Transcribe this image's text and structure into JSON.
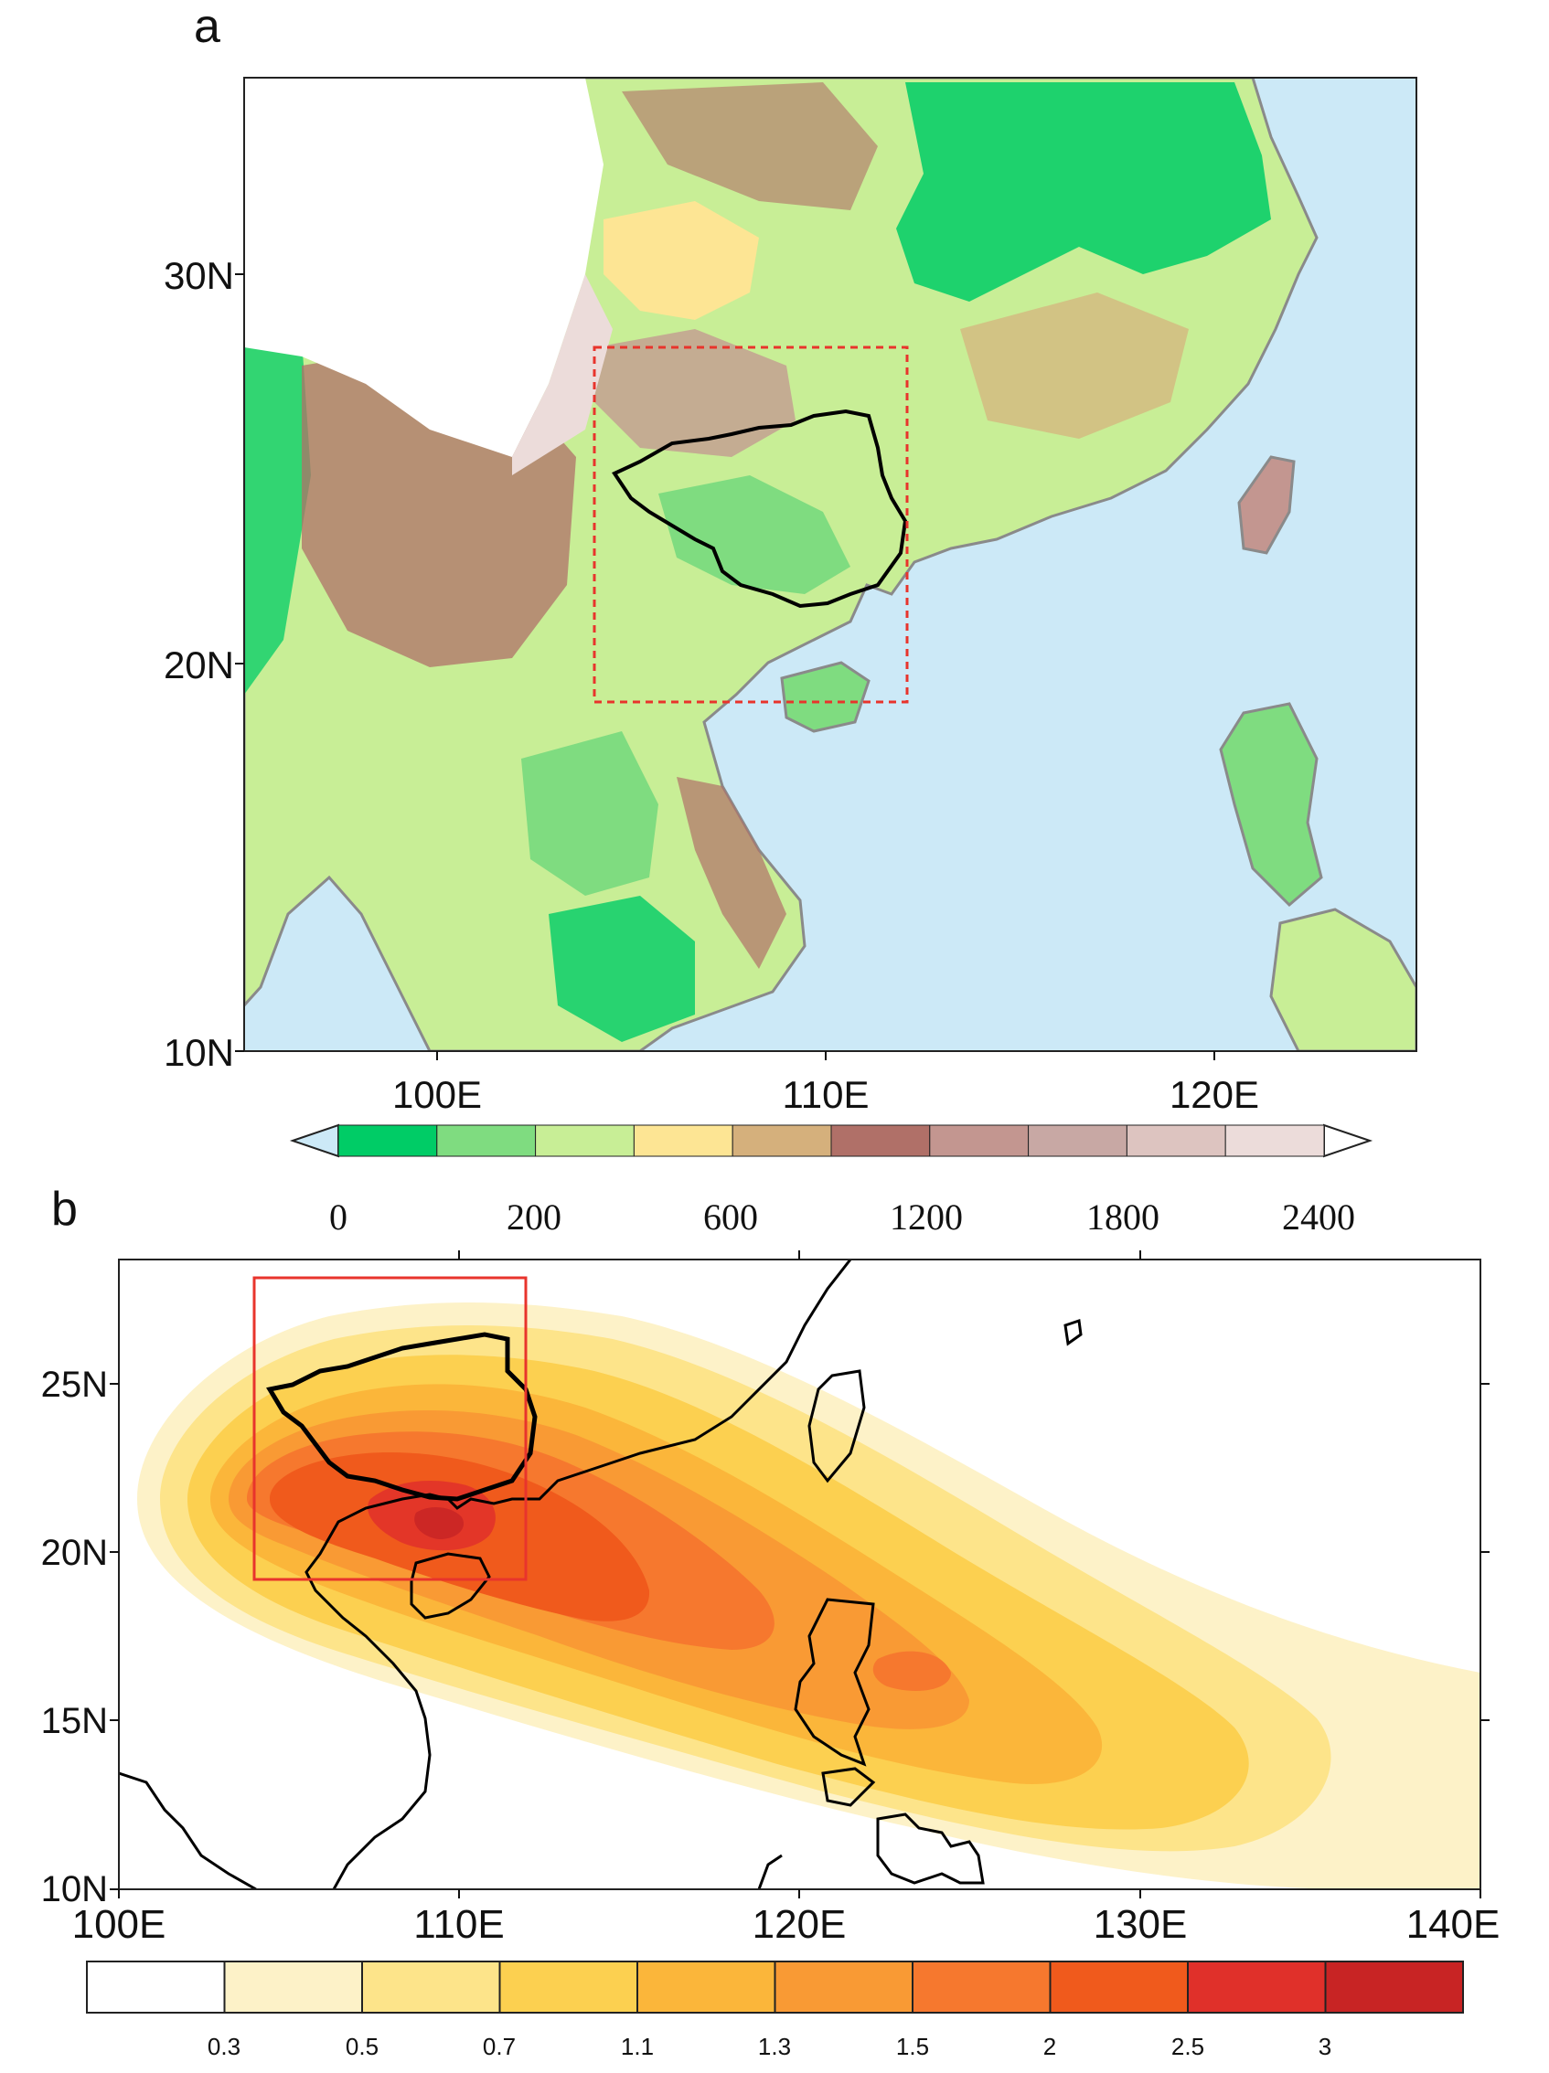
{
  "panel_a": {
    "label": "a",
    "lat_ticks": [
      "30N",
      "20N",
      "10N"
    ],
    "lon_ticks": [
      "100E",
      "110E",
      "120E"
    ],
    "colorbar": {
      "tick_labels": [
        "0",
        "200",
        "600",
        "1200",
        "1800",
        "2400"
      ],
      "colors": [
        "#00cc66",
        "#7fdc80",
        "#c8ee96",
        "#fde594",
        "#d5b07c",
        "#b07068",
        "#c39690",
        "#c8a8a4",
        "#ddc4c0",
        "#ecdcda"
      ],
      "ocean_color": "#cce9f7"
    },
    "box_style": "dashed-red"
  },
  "panel_b": {
    "label": "b",
    "lat_ticks": [
      "25N",
      "20N",
      "15N",
      "10N"
    ],
    "lon_ticks": [
      "100E",
      "110E",
      "120E",
      "130E",
      "140E"
    ],
    "colorbar": {
      "tick_labels": [
        "0.3",
        "0.5",
        "0.7",
        "1.1",
        "1.3",
        "1.5",
        "2",
        "2.5",
        "3"
      ],
      "colors": [
        "#ffffff",
        "#fdf2c8",
        "#fde48a",
        "#fcd050",
        "#fbb63a",
        "#f99a34",
        "#f6782e",
        "#f05a1c",
        "#e0302a",
        "#c82424"
      ]
    },
    "box_style": "solid-red"
  }
}
